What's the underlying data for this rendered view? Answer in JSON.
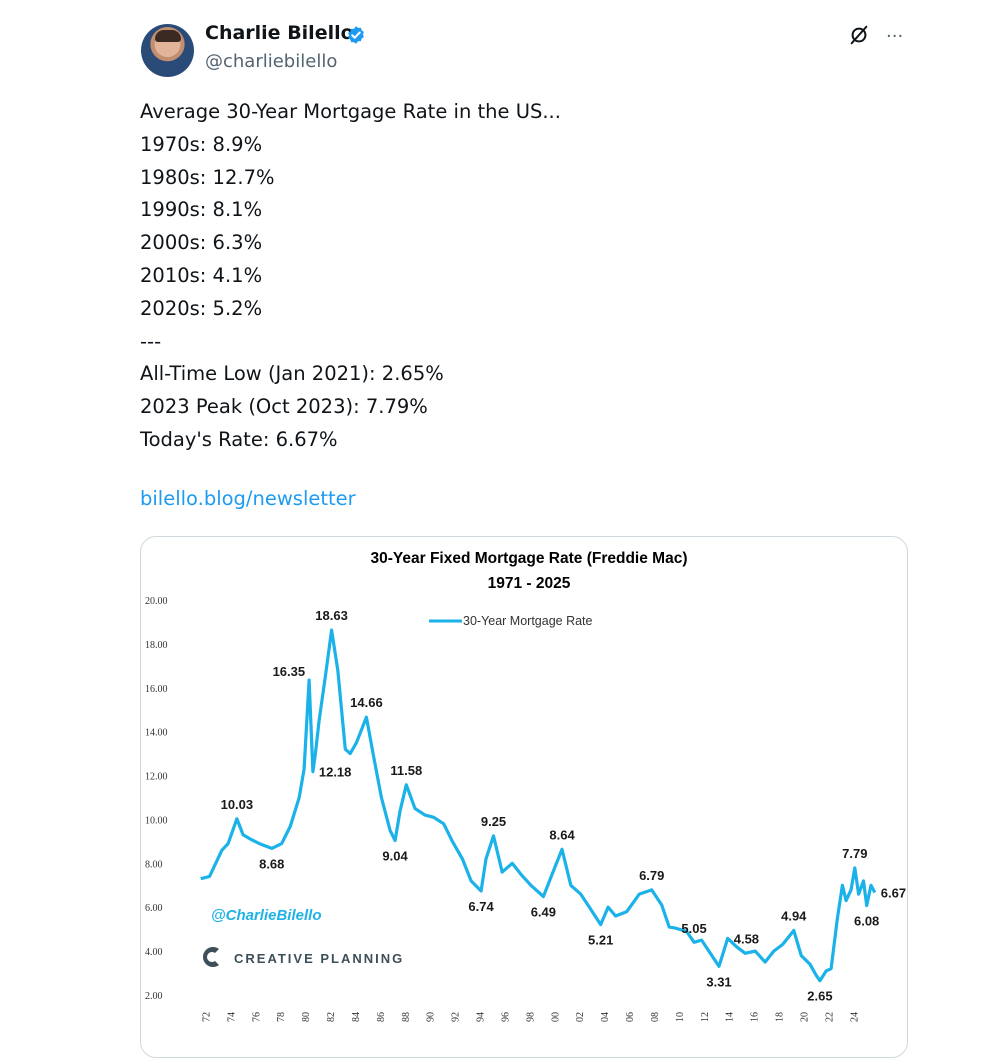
{
  "author": {
    "name": "Charlie Bilello",
    "handle": "@charliebilello",
    "verified": true,
    "avatar": "avatar-photo"
  },
  "header_icons": [
    "grok-icon",
    "more-icon"
  ],
  "more_label": "···",
  "tweet": {
    "lines": [
      "Average 30-Year Mortgage Rate in the US...",
      "1970s: 8.9%",
      "1980s: 12.7%",
      "1990s: 8.1%",
      "2000s: 6.3%",
      "2010s: 4.1%",
      "2020s: 5.2%",
      "---",
      "All-Time Low (Jan 2021): 2.65%",
      "2023 Peak (Oct 2023): 7.79%",
      "Today's Rate: 6.67%"
    ],
    "link": "bilello.blog/newsletter"
  },
  "colors": {
    "link": "#1d9bf0",
    "line": "#1ab2e8",
    "verified": "#1d9bf0",
    "brand": "#3d4f58"
  },
  "chart_data": {
    "type": "line",
    "title": "30-Year Fixed Mortgage Rate (Freddie Mac)",
    "subtitle": "1971 - 2025",
    "legend": "30-Year Mortgage Rate",
    "legend_position": "top-center",
    "watermark": "@CharlieBilello",
    "brand": "CREATIVE PLANNING",
    "xlabel": "",
    "ylabel": "",
    "ylim": [
      2,
      20
    ],
    "xlim": [
      1971,
      2025.5
    ],
    "y_ticks": [
      "20.00",
      "18.00",
      "16.00",
      "14.00",
      "12.00",
      "10.00",
      "8.00",
      "6.00",
      "4.00",
      "2.00"
    ],
    "x_ticks": [
      "72",
      "74",
      "76",
      "78",
      "80",
      "82",
      "84",
      "86",
      "88",
      "90",
      "92",
      "94",
      "96",
      "98",
      "00",
      "02",
      "04",
      "06",
      "08",
      "10",
      "12",
      "14",
      "16",
      "18",
      "20",
      "22",
      "24"
    ],
    "series": [
      {
        "name": "30-Year Mortgage Rate",
        "x": [
          1971.3,
          1972,
          1973,
          1973.5,
          1974.2,
          1974.7,
          1975.3,
          1976,
          1977,
          1977.8,
          1978.5,
          1979.2,
          1979.6,
          1980.0,
          1980.3,
          1980.5,
          1980.8,
          1981.3,
          1981.8,
          1982.3,
          1982.9,
          1983.3,
          1983.8,
          1984.6,
          1985.2,
          1985.8,
          1986.5,
          1986.9,
          1987.3,
          1987.8,
          1988.5,
          1989.3,
          1990,
          1990.8,
          1991.5,
          1992.3,
          1993,
          1993.8,
          1994.2,
          1994.8,
          1995.5,
          1996.3,
          1997,
          1997.8,
          1998.8,
          1999.5,
          2000.3,
          2001,
          2001.8,
          2002.5,
          2003.4,
          2004,
          2004.6,
          2005.5,
          2006.5,
          2007.5,
          2008.3,
          2008.9,
          2009.4,
          2010.3,
          2010.9,
          2011.5,
          2012.2,
          2012.9,
          2013.6,
          2014.3,
          2015,
          2015.8,
          2016.6,
          2017.3,
          2018,
          2018.9,
          2019.5,
          2020.2,
          2020.7,
          2021.0,
          2021.5,
          2021.9,
          2022.4,
          2022.8,
          2023.1,
          2023.5,
          2023.8,
          2024.1,
          2024.5,
          2024.75,
          2025.1,
          2025.4
        ],
        "y": [
          7.3,
          7.4,
          8.6,
          8.9,
          10.03,
          9.3,
          9.1,
          8.9,
          8.68,
          8.9,
          9.7,
          11.0,
          12.3,
          16.35,
          12.18,
          13.0,
          14.5,
          16.5,
          18.63,
          16.8,
          13.2,
          13.0,
          13.5,
          14.66,
          12.8,
          11.0,
          9.5,
          9.04,
          10.4,
          11.58,
          10.5,
          10.2,
          10.1,
          9.8,
          9.0,
          8.2,
          7.2,
          6.74,
          8.2,
          9.25,
          7.6,
          8.0,
          7.5,
          7.0,
          6.49,
          7.5,
          8.64,
          7.0,
          6.6,
          6.0,
          5.21,
          6.0,
          5.6,
          5.8,
          6.6,
          6.79,
          6.1,
          5.1,
          5.05,
          4.9,
          4.4,
          4.5,
          3.9,
          3.31,
          4.58,
          4.2,
          3.9,
          4.0,
          3.5,
          4.0,
          4.3,
          4.94,
          3.8,
          3.4,
          2.9,
          2.65,
          3.1,
          3.2,
          5.5,
          7.0,
          6.3,
          6.8,
          7.79,
          6.6,
          7.2,
          6.08,
          7.0,
          6.67
        ]
      }
    ],
    "annotations": [
      {
        "x": 1974.2,
        "y": 10.03,
        "text": "10.03",
        "pos": "above"
      },
      {
        "x": 1977,
        "y": 8.68,
        "text": "8.68",
        "pos": "below"
      },
      {
        "x": 1980.0,
        "y": 16.35,
        "text": "16.35",
        "pos": "left"
      },
      {
        "x": 1980.3,
        "y": 12.18,
        "text": "12.18",
        "pos": "right"
      },
      {
        "x": 1981.8,
        "y": 18.63,
        "text": "18.63",
        "pos": "above"
      },
      {
        "x": 1984.6,
        "y": 14.66,
        "text": "14.66",
        "pos": "above"
      },
      {
        "x": 1986.9,
        "y": 9.04,
        "text": "9.04",
        "pos": "below"
      },
      {
        "x": 1987.8,
        "y": 11.58,
        "text": "11.58",
        "pos": "above"
      },
      {
        "x": 1993.8,
        "y": 6.74,
        "text": "6.74",
        "pos": "below"
      },
      {
        "x": 1994.8,
        "y": 9.25,
        "text": "9.25",
        "pos": "above"
      },
      {
        "x": 1998.8,
        "y": 6.49,
        "text": "6.49",
        "pos": "below"
      },
      {
        "x": 2000.3,
        "y": 8.64,
        "text": "8.64",
        "pos": "above"
      },
      {
        "x": 2003.4,
        "y": 5.21,
        "text": "5.21",
        "pos": "below"
      },
      {
        "x": 2007.5,
        "y": 6.79,
        "text": "6.79",
        "pos": "above"
      },
      {
        "x": 2009.4,
        "y": 5.05,
        "text": "5.05",
        "pos": "right"
      },
      {
        "x": 2012.9,
        "y": 3.31,
        "text": "3.31",
        "pos": "below"
      },
      {
        "x": 2013.6,
        "y": 4.58,
        "text": "4.58",
        "pos": "right"
      },
      {
        "x": 2018.9,
        "y": 4.94,
        "text": "4.94",
        "pos": "above"
      },
      {
        "x": 2021.0,
        "y": 2.65,
        "text": "2.65",
        "pos": "below"
      },
      {
        "x": 2023.8,
        "y": 7.79,
        "text": "7.79",
        "pos": "above"
      },
      {
        "x": 2024.75,
        "y": 6.08,
        "text": "6.08",
        "pos": "below"
      },
      {
        "x": 2025.4,
        "y": 6.67,
        "text": "6.67",
        "pos": "right"
      }
    ]
  }
}
